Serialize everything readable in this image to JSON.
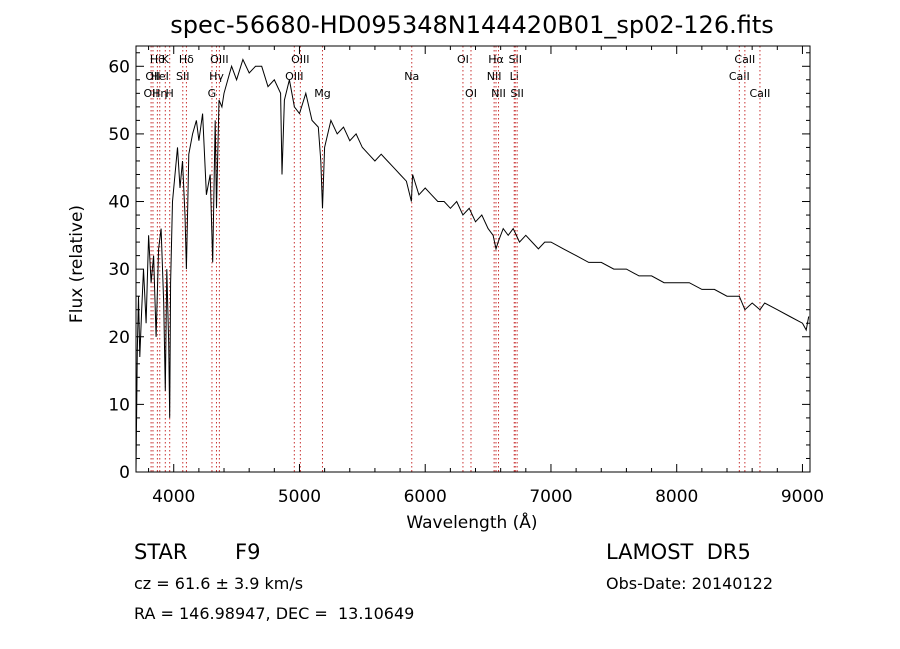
{
  "chart_data": {
    "type": "line",
    "title": "spec-56680-HD095348N144420B01_sp02-126.fits",
    "xlabel": "Wavelength (Å)",
    "ylabel": "Flux (relative)",
    "xlim": [
      3700,
      9060
    ],
    "ylim": [
      0,
      63
    ],
    "xticks": [
      4000,
      5000,
      6000,
      7000,
      8000,
      9000
    ],
    "yticks": [
      0,
      10,
      20,
      30,
      40,
      50,
      60
    ],
    "grid": false,
    "series": [
      {
        "values_note": "",
        "color": "#000000",
        "x": [
          3700,
          3710,
          3720,
          3730,
          3745,
          3760,
          3780,
          3800,
          3820,
          3840,
          3860,
          3880,
          3900,
          3920,
          3933,
          3945,
          3960,
          3968,
          3975,
          3990,
          4010,
          4030,
          4050,
          4070,
          4090,
          4101,
          4120,
          4150,
          4180,
          4200,
          4230,
          4260,
          4290,
          4310,
          4330,
          4340,
          4360,
          4383,
          4400,
          4430,
          4460,
          4500,
          4550,
          4600,
          4650,
          4700,
          4750,
          4800,
          4850,
          4861,
          4880,
          4920,
          4960,
          5000,
          5050,
          5100,
          5150,
          5170,
          5183,
          5200,
          5250,
          5300,
          5350,
          5400,
          5450,
          5500,
          5550,
          5600,
          5650,
          5700,
          5750,
          5800,
          5850,
          5890,
          5900,
          5950,
          6000,
          6050,
          6100,
          6150,
          6200,
          6250,
          6300,
          6350,
          6400,
          6450,
          6500,
          6540,
          6563,
          6580,
          6620,
          6660,
          6700,
          6750,
          6800,
          6850,
          6900,
          6950,
          7000,
          7100,
          7200,
          7300,
          7400,
          7500,
          7600,
          7700,
          7800,
          7900,
          8000,
          8100,
          8200,
          8300,
          8400,
          8498,
          8542,
          8600,
          8662,
          8700,
          8800,
          8900,
          9000,
          9030,
          9050
        ],
        "y": [
          0,
          18,
          26,
          17,
          24,
          30,
          22,
          35,
          28,
          32,
          20,
          33,
          36,
          25,
          12,
          30,
          19,
          8,
          28,
          40,
          44,
          48,
          42,
          46,
          38,
          30,
          47,
          50,
          52,
          49,
          53,
          41,
          44,
          31,
          52,
          39,
          55,
          54,
          56,
          58,
          60,
          58,
          61,
          59,
          60,
          60,
          57,
          58,
          56,
          44,
          55,
          58,
          54,
          53,
          56,
          52,
          51,
          46,
          39,
          48,
          52,
          50,
          51,
          49,
          50,
          48,
          47,
          46,
          47,
          46,
          45,
          44,
          43,
          40,
          44,
          41,
          42,
          41,
          40,
          40,
          39,
          40,
          38,
          39,
          37,
          38,
          36,
          35,
          33,
          34,
          36,
          35,
          36,
          34,
          35,
          34,
          33,
          34,
          34,
          33,
          32,
          31,
          31,
          30,
          30,
          29,
          29,
          28,
          28,
          28,
          27,
          27,
          26,
          26,
          24,
          25,
          24,
          25,
          24,
          23,
          22,
          21,
          23
        ]
      }
    ],
    "line_labels": [
      {
        "wl": 3820,
        "row": 3,
        "text": "OII"
      },
      {
        "wl": 3835,
        "row": 2,
        "text": "OII"
      },
      {
        "wl": 3870,
        "row": 1,
        "text": "Hθ"
      },
      {
        "wl": 3889,
        "row": 2,
        "text": "HeI"
      },
      {
        "wl": 3889,
        "row": 3,
        "text": "Hη"
      },
      {
        "wl": 3933,
        "row": 1,
        "text": "K"
      },
      {
        "wl": 3968,
        "row": 3,
        "text": "H"
      },
      {
        "wl": 4072,
        "row": 2,
        "text": "SII"
      },
      {
        "wl": 4101,
        "row": 1,
        "text": "Hδ"
      },
      {
        "wl": 4304,
        "row": 3,
        "text": "G"
      },
      {
        "wl": 4340,
        "row": 2,
        "text": "Hγ"
      },
      {
        "wl": 4363,
        "row": 1,
        "text": "OIII"
      },
      {
        "wl": 4959,
        "row": 2,
        "text": "OIII"
      },
      {
        "wl": 5007,
        "row": 1,
        "text": "OIII"
      },
      {
        "wl": 5183,
        "row": 3,
        "text": "Mg"
      },
      {
        "wl": 5893,
        "row": 2,
        "text": "Na"
      },
      {
        "wl": 6300,
        "row": 1,
        "text": "OI"
      },
      {
        "wl": 6364,
        "row": 3,
        "text": "OI"
      },
      {
        "wl": 6548,
        "row": 2,
        "text": "NII"
      },
      {
        "wl": 6563,
        "row": 1,
        "text": "Hα"
      },
      {
        "wl": 6583,
        "row": 3,
        "text": "NII"
      },
      {
        "wl": 6708,
        "row": 2,
        "text": "Li"
      },
      {
        "wl": 6716,
        "row": 1,
        "text": "SII"
      },
      {
        "wl": 6731,
        "row": 3,
        "text": "SII"
      },
      {
        "wl": 8498,
        "row": 2,
        "text": "CaII"
      },
      {
        "wl": 8542,
        "row": 1,
        "text": "CaII"
      },
      {
        "wl": 8662,
        "row": 3,
        "text": "CaII"
      }
    ]
  },
  "info": {
    "obj_class": "STAR",
    "subclass": "F9",
    "survey": "LAMOST  DR5",
    "cz": "cz = 61.6 ± 3.9 km/s",
    "obs_date": "Obs-Date: 20140122",
    "coords": "RA = 146.98947, DEC =  13.10649"
  }
}
